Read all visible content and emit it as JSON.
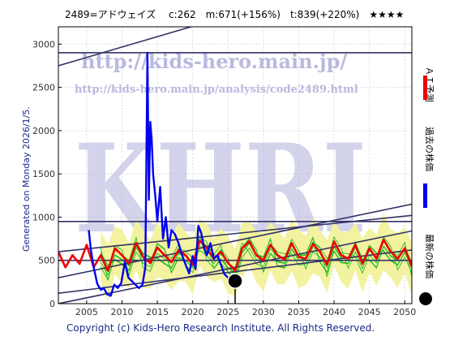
{
  "header": {
    "title": "2489=アドウェイズ　 c:262　m:671(+156%)　t:839(+220%)　★★★★"
  },
  "side": {
    "generated": "Generated on Monday 2026/1/5.",
    "legend_ai": "ＡＩ予測",
    "legend_past": "過去の株価",
    "legend_latest": "最新の株価"
  },
  "footer": {
    "copyright": "Copyright (c) Kids-Hero Research Institute. All Rights Reserved."
  },
  "watermark": {
    "url1": "http://kids-hero.main.jp/",
    "url2": "http://kids-hero.main.jp/analysis/code2489.html",
    "big": "KHRI"
  },
  "colors": {
    "ai": "#ee0000",
    "past": "#0000ee",
    "latest": "#000000",
    "trend": "#333366",
    "band_fill": "#f2f2a0",
    "band_line": "#22bb22"
  },
  "chart_data": {
    "type": "line",
    "xlim": [
      2001,
      2051
    ],
    "ylim": [
      0,
      3200
    ],
    "xticks": [
      2005,
      2010,
      2015,
      2020,
      2025,
      2030,
      2035,
      2040,
      2045,
      2050
    ],
    "yticks": [
      0,
      500,
      1000,
      1500,
      2000,
      2500,
      3000
    ],
    "grid": true,
    "series": [
      {
        "name": "過去の株価",
        "x": [
          2005.3,
          2005.6,
          2006.0,
          2006.5,
          2007.0,
          2007.4,
          2007.9,
          2008.4,
          2008.9,
          2009.4,
          2009.9,
          2010.4,
          2010.9,
          2011.4,
          2011.9,
          2012.4,
          2012.9,
          2013.3,
          2013.6,
          2013.8,
          2014.0,
          2014.2,
          2014.4,
          2014.7,
          2015.0,
          2015.4,
          2015.8,
          2016.2,
          2016.6,
          2017.0,
          2017.5,
          2018.0,
          2018.5,
          2019.0,
          2019.5,
          2020.0,
          2020.4,
          2020.8,
          2021.2,
          2021.6,
          2022.0,
          2022.5,
          2023.0,
          2023.5,
          2024.0,
          2024.5,
          2025.0,
          2025.5
        ],
        "values": [
          850,
          620,
          420,
          230,
          160,
          180,
          110,
          90,
          220,
          180,
          240,
          480,
          300,
          260,
          220,
          180,
          220,
          420,
          2900,
          1200,
          2100,
          1900,
          1500,
          1250,
          950,
          1350,
          750,
          1000,
          650,
          850,
          800,
          700,
          560,
          450,
          350,
          550,
          400,
          900,
          820,
          650,
          560,
          700,
          520,
          560,
          450,
          340,
          300,
          280
        ]
      },
      {
        "name": "ＡＩ予測",
        "x": [
          2001.0,
          2002.0,
          2003.0,
          2004.0,
          2005.0,
          2006.0,
          2007.0,
          2008.0,
          2009.0,
          2010.0,
          2011.0,
          2012.0,
          2013.0,
          2014.0,
          2015.0,
          2016.0,
          2017.0,
          2018.0,
          2019.0,
          2020.0,
          2021.0,
          2022.0,
          2023.0,
          2024.0,
          2025.0,
          2026.0,
          2027.0,
          2028.0,
          2029.0,
          2030.0,
          2031.0,
          2032.0,
          2033.0,
          2034.0,
          2035.0,
          2036.0,
          2037.0,
          2038.0,
          2039.0,
          2040.0,
          2041.0,
          2042.0,
          2043.0,
          2044.0,
          2045.0,
          2046.0,
          2047.0,
          2048.0,
          2049.0,
          2050.0,
          2051.0
        ],
        "values": [
          600,
          420,
          560,
          460,
          680,
          420,
          560,
          380,
          640,
          560,
          460,
          700,
          540,
          470,
          650,
          560,
          480,
          620,
          560,
          450,
          730,
          640,
          520,
          600,
          470,
          380,
          640,
          720,
          560,
          500,
          680,
          560,
          510,
          700,
          540,
          520,
          690,
          600,
          450,
          720,
          560,
          520,
          680,
          460,
          640,
          520,
          740,
          600,
          520,
          640,
          430
        ]
      }
    ],
    "latest": {
      "x": 2026.0,
      "y": 262
    },
    "reference_levels": [
      2900,
      950,
      500
    ],
    "trend_lines": [
      {
        "x": [
          2001,
          2051
        ],
        "y": [
          2750,
          3950
        ]
      },
      {
        "x": [
          2001,
          2051
        ],
        "y": [
          600,
          1020
        ]
      },
      {
        "x": [
          2001,
          2051
        ],
        "y": [
          300,
          1150
        ]
      },
      {
        "x": [
          2001,
          2051
        ],
        "y": [
          0,
          840
        ]
      },
      {
        "x": [
          2001,
          2051
        ],
        "y": [
          120,
          620
        ]
      }
    ]
  }
}
